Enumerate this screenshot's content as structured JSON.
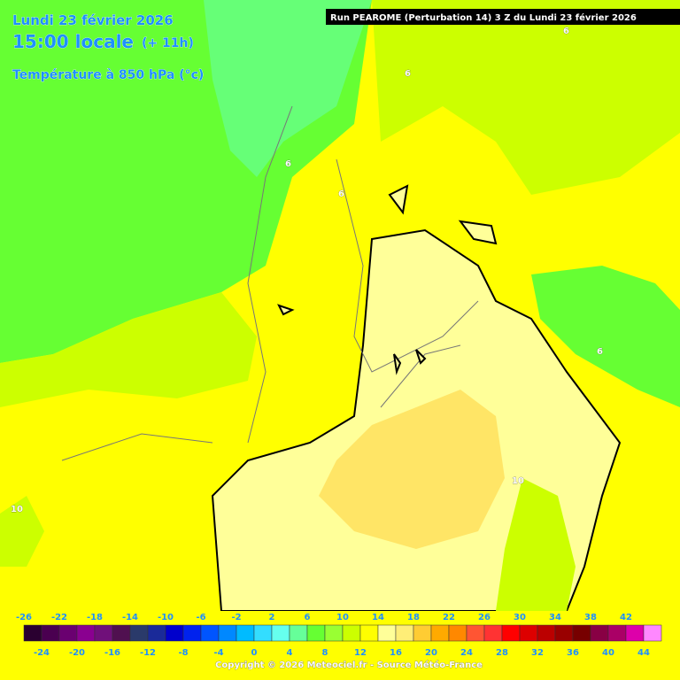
{
  "header": {
    "date": "Lundi 23 février 2026",
    "time": "15:00 locale",
    "lead": "(+ 11h)",
    "field": "Température à 850 hPa (°c)",
    "run": "Run PEAROME (Perturbation 14) 3 Z du Lundi 23 février 2026"
  },
  "contour_labels": [
    "6",
    "6",
    "6",
    "6",
    "6",
    "10",
    "10"
  ],
  "legend": {
    "values": [
      -26,
      -24,
      -22,
      -20,
      -18,
      -16,
      -14,
      -12,
      -10,
      -8,
      -6,
      -4,
      -2,
      0,
      2,
      4,
      6,
      8,
      10,
      12,
      14,
      16,
      18,
      20,
      22,
      24,
      26,
      28,
      30,
      32,
      34,
      36,
      38,
      40,
      42,
      44
    ],
    "colors": [
      "#2a0030",
      "#4a0050",
      "#6a0070",
      "#8a0090",
      "#70107a",
      "#501050",
      "#2a3a6a",
      "#1a2a99",
      "#0000cc",
      "#0022ee",
      "#0055ff",
      "#0088ff",
      "#00bbff",
      "#33ddff",
      "#66ffee",
      "#66ff99",
      "#66ff33",
      "#99ff33",
      "#ccff00",
      "#ffff00",
      "#ffff99",
      "#ffee77",
      "#ffcc33",
      "#ffaa00",
      "#ff8800",
      "#ff5533",
      "#ff3333",
      "#ff0000",
      "#dd0000",
      "#bb0000",
      "#990000",
      "#770000",
      "#880044",
      "#aa0066",
      "#dd00aa",
      "#ff88ff"
    ]
  },
  "footer": {
    "copyright": "Copyright © 2026 Meteociel.fr - Source Météo-France"
  }
}
